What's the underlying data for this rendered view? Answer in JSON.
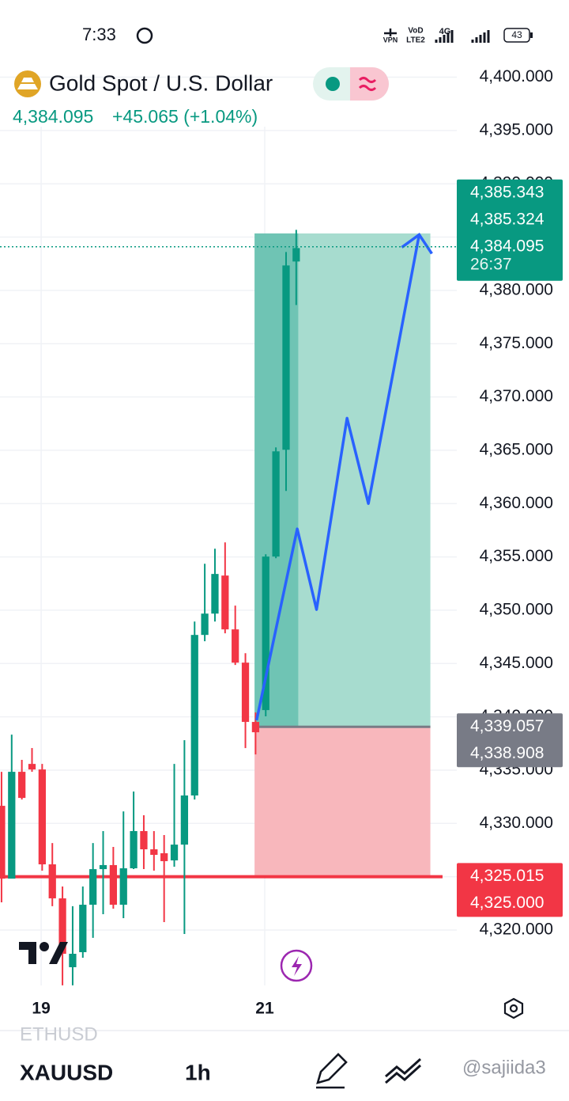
{
  "status_bar": {
    "time": "7:33",
    "vpn": "VPN",
    "vod": "VoD",
    "lte": "LTE2",
    "network": "4G",
    "battery": "43"
  },
  "header": {
    "title": "Gold Spot / U.S. Dollar",
    "price": "4,384.095",
    "change": "+45.065 (+1.04%)"
  },
  "chart_data": {
    "type": "candlestick",
    "up_color": "#089981",
    "down_color": "#f23645",
    "x": [
      0,
      1,
      2,
      3,
      4,
      5,
      6,
      7,
      8,
      9,
      10,
      11,
      12,
      13,
      14,
      15,
      16,
      17,
      18,
      19,
      20,
      21,
      22,
      23,
      24,
      25,
      26,
      27,
      28,
      29
    ],
    "open": [
      4331.65,
      4324.82,
      4334.84,
      4335.58,
      4335.06,
      4326.16,
      4322.97,
      4316.51,
      4317.92,
      4322.37,
      4325.71,
      4326.09,
      4322.37,
      4325.79,
      4329.28,
      4327.57,
      4327.2,
      4326.53,
      4328.01,
      4332.62,
      4347.68,
      4349.68,
      4353.25,
      4348.2,
      4345.08,
      4339.52,
      4340.63,
      4355.03,
      4365.05,
      4382.71
    ],
    "high": [
      4334.84,
      4338.33,
      4335.96,
      4337.07,
      4335.58,
      4328.16,
      4324.08,
      4322.23,
      4324.08,
      4328.16,
      4329.28,
      4327.79,
      4331.13,
      4332.99,
      4330.76,
      4329.28,
      4328.91,
      4335.58,
      4337.81,
      4348.94,
      4354.36,
      4355.77,
      4356.36,
      4350.43,
      4345.97,
      4340.41,
      4355.25,
      4365.27,
      4383.6,
      4385.68
    ],
    "low": [
      4322.6,
      4324.82,
      4332.24,
      4334.84,
      4325.57,
      4322.23,
      4314.81,
      4314.81,
      4317.4,
      4319.26,
      4321.48,
      4322.0,
      4321.11,
      4325.71,
      4325.71,
      4325.57,
      4320.74,
      4325.94,
      4319.63,
      4332.24,
      4347.09,
      4348.94,
      4347.83,
      4344.86,
      4337.07,
      4336.47,
      4340.04,
      4354.88,
      4361.19,
      4378.63
    ],
    "close": [
      4324.82,
      4334.84,
      4332.39,
      4335.06,
      4326.16,
      4322.97,
      4317.77,
      4317.77,
      4322.37,
      4325.71,
      4326.09,
      4322.37,
      4325.79,
      4329.28,
      4327.57,
      4327.05,
      4326.46,
      4328.01,
      4332.62,
      4347.68,
      4349.68,
      4353.4,
      4348.2,
      4345.08,
      4339.52,
      4338.55,
      4355.03,
      4364.9,
      4382.34,
      4383.97
    ],
    "xlim": [
      -0.15,
      43.4
    ],
    "ylim": [
      4314.8,
      4401.3
    ],
    "xticks": [
      {
        "value": 3.9,
        "label": "19"
      },
      {
        "value": 25.9,
        "label": "21"
      }
    ],
    "yticks": [
      {
        "value": 4400,
        "label": "4,400.000"
      },
      {
        "value": 4395,
        "label": "4,395.000"
      },
      {
        "value": 4390,
        "label": "4,390.000"
      },
      {
        "value": 4385,
        "label": "4,385.000"
      },
      {
        "value": 4380,
        "label": "4,380.000"
      },
      {
        "value": 4375,
        "label": "4,375.000"
      },
      {
        "value": 4370,
        "label": "4,370.000"
      },
      {
        "value": 4365,
        "label": "4,365.000"
      },
      {
        "value": 4360,
        "label": "4,360.000"
      },
      {
        "value": 4355,
        "label": "4,355.000"
      },
      {
        "value": 4350,
        "label": "4,350.000"
      },
      {
        "value": 4345,
        "label": "4,345.000"
      },
      {
        "value": 4340,
        "label": "4,340.000"
      },
      {
        "value": 4335,
        "label": "4,335.000"
      },
      {
        "value": 4330,
        "label": "4,330.000"
      },
      {
        "value": 4325,
        "label": "4,325.000"
      },
      {
        "value": 4320,
        "label": "4,320.000"
      }
    ],
    "grid": true,
    "position": {
      "x": [
        24.9,
        42.2
      ],
      "target": 4385.343,
      "entry": 4339.057,
      "stop": 4325.015,
      "profit_color": "#a7dccf",
      "loss_color": "#f8b7bc"
    },
    "horizontal_line": {
      "value": 4325.0,
      "color": "#f23645"
    },
    "price_line": {
      "value": 4384.095,
      "color": "#089981"
    },
    "projection": {
      "color": "#2962ff",
      "x": [
        25.1,
        29.1,
        31.0,
        34.0,
        36.1,
        41.1
      ],
      "values": [
        4339.67,
        4357.63,
        4350.06,
        4368.01,
        4360.0,
        4385.23
      ]
    },
    "price_tag_groups": [
      {
        "color": "#089981",
        "tags": [
          {
            "value": 4385.343,
            "label": "4,385.343"
          },
          {
            "value": 4385.324,
            "label": "4,385.324"
          },
          {
            "value": 4384.095,
            "label": "4,384.095"
          }
        ],
        "countdown": "26:37"
      },
      {
        "color": "#787b86",
        "tags": [
          {
            "value": 4339.057,
            "label": "4,339.057"
          },
          {
            "value": 4338.908,
            "label": "4,338.908"
          }
        ]
      },
      {
        "color": "#f23645",
        "tags": [
          {
            "value": 4325.015,
            "label": "4,325.015"
          },
          {
            "value": 4325.0,
            "label": "4,325.000"
          }
        ]
      }
    ]
  },
  "bottom_bar": {
    "previous_symbol": "ETHUSD",
    "symbol": "XAUUSD",
    "interval": "1h",
    "watermark": "@sajiida3"
  }
}
